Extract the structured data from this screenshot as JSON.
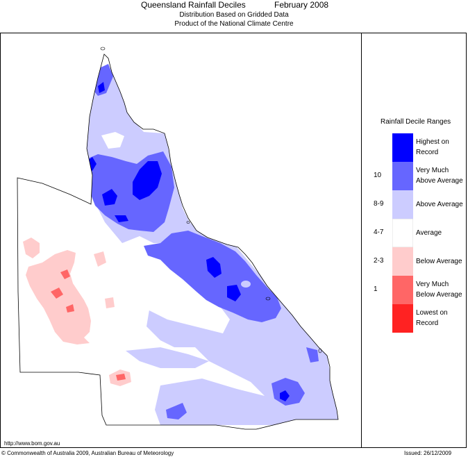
{
  "header": {
    "title": "Queensland Rainfall Deciles",
    "period": "February 2008",
    "subtitle1": "Distribution Based on Gridded Data",
    "subtitle2": "Product of the National Climate Centre"
  },
  "legend": {
    "title": "Rainfall Decile Ranges",
    "items": [
      {
        "code": "",
        "label_line1": "Highest on",
        "label_line2": "Record",
        "color": "#0000ff"
      },
      {
        "code": "10",
        "label_line1": "Very Much",
        "label_line2": "Above Average",
        "color": "#6666ff"
      },
      {
        "code": "8-9",
        "label_line1": "Above Average",
        "label_line2": "",
        "color": "#ccccff"
      },
      {
        "code": "4-7",
        "label_line1": "Average",
        "label_line2": "",
        "color": "#ffffff"
      },
      {
        "code": "2-3",
        "label_line1": "Below Average",
        "label_line2": "",
        "color": "#ffcccc"
      },
      {
        "code": "1",
        "label_line1": "Very Much",
        "label_line2": "Below Average",
        "color": "#ff6666"
      },
      {
        "code": "",
        "label_line1": "Lowest on",
        "label_line2": "Record",
        "color": "#ff2222"
      }
    ]
  },
  "footer": {
    "url": "http://www.bom.gov.au",
    "copyright": "© Commonwealth of Australia 2009, Australian Bureau of Meteorology",
    "issued": "Issued: 26/12/2009"
  },
  "colors": {
    "above": "#ccccff",
    "very_much_above": "#6666ff",
    "highest": "#0000ff",
    "below": "#ffcccc",
    "very_much_below": "#ff6666",
    "average": "#ffffff"
  }
}
